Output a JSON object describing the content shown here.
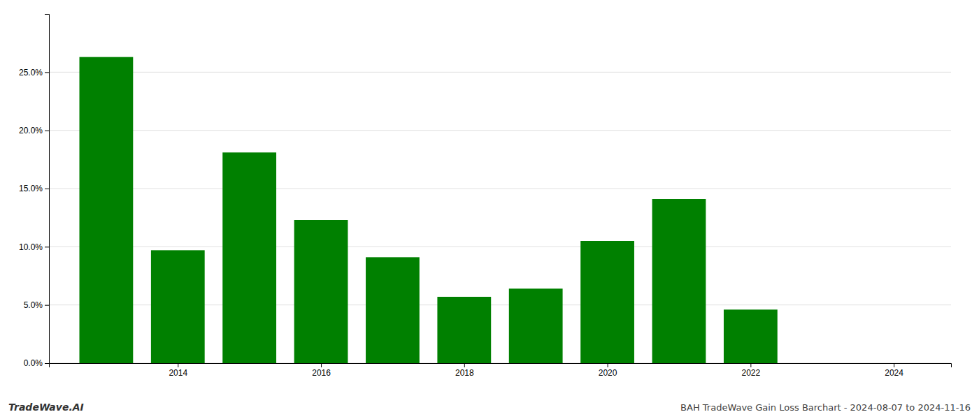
{
  "chart_data": {
    "type": "bar",
    "title": "BAH TradeWave Gain Loss Barchart - 2024-08-07 to 2024-11-16",
    "annotations": [
      "TradeWave.AI"
    ],
    "x": [
      2013,
      2014,
      2015,
      2016,
      2017,
      2018,
      2019,
      2020,
      2021,
      2022,
      2023
    ],
    "values": [
      0.263,
      0.097,
      0.181,
      0.123,
      0.091,
      0.057,
      0.064,
      0.105,
      0.141,
      0.046,
      0.0
    ],
    "color": "#008000",
    "xlim": [
      2012.2,
      2024.8
    ],
    "xticks": [
      2014,
      2016,
      2018,
      2020,
      2022,
      2024
    ],
    "ylim": [
      0,
      0.3
    ],
    "yticks": [
      {
        "value": 0.0,
        "label": "0.0%"
      },
      {
        "value": 0.05,
        "label": "5.0%"
      },
      {
        "value": 0.1,
        "label": "10.0%"
      },
      {
        "value": 0.15,
        "label": "15.0%"
      },
      {
        "value": 0.2,
        "label": "20.0%"
      },
      {
        "value": 0.25,
        "label": "25.0%"
      }
    ],
    "grid": true
  }
}
